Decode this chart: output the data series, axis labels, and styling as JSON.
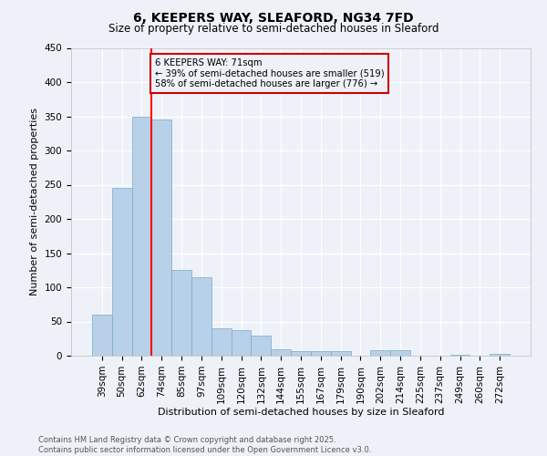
{
  "title_line1": "6, KEEPERS WAY, SLEAFORD, NG34 7FD",
  "title_line2": "Size of property relative to semi-detached houses in Sleaford",
  "categories": [
    "39sqm",
    "50sqm",
    "62sqm",
    "74sqm",
    "85sqm",
    "97sqm",
    "109sqm",
    "120sqm",
    "132sqm",
    "144sqm",
    "155sqm",
    "167sqm",
    "179sqm",
    "190sqm",
    "202sqm",
    "214sqm",
    "225sqm",
    "237sqm",
    "249sqm",
    "260sqm",
    "272sqm"
  ],
  "values": [
    60,
    245,
    350,
    345,
    125,
    115,
    40,
    38,
    30,
    10,
    7,
    7,
    7,
    0,
    8,
    8,
    0,
    0,
    2,
    0,
    3
  ],
  "bar_color": "#b8d0e8",
  "bar_edge_color": "#7aaac8",
  "property_label": "6 KEEPERS WAY: 71sqm",
  "annotation_smaller": "← 39% of semi-detached houses are smaller (519)",
  "annotation_larger": "58% of semi-detached houses are larger (776) →",
  "xlabel": "Distribution of semi-detached houses by size in Sleaford",
  "ylabel": "Number of semi-detached properties",
  "ylim": [
    0,
    450
  ],
  "yticks": [
    0,
    50,
    100,
    150,
    200,
    250,
    300,
    350,
    400,
    450
  ],
  "footer_line1": "Contains HM Land Registry data © Crown copyright and database right 2025.",
  "footer_line2": "Contains public sector information licensed under the Open Government Licence v3.0.",
  "bg_color": "#eef2f8",
  "grid_color": "#ffffff",
  "annotation_box_color": "#cc0000",
  "title_fontsize": 10,
  "subtitle_fontsize": 8.5,
  "ylabel_fontsize": 8,
  "xlabel_fontsize": 8,
  "tick_fontsize": 7.5,
  "footer_fontsize": 6.0
}
